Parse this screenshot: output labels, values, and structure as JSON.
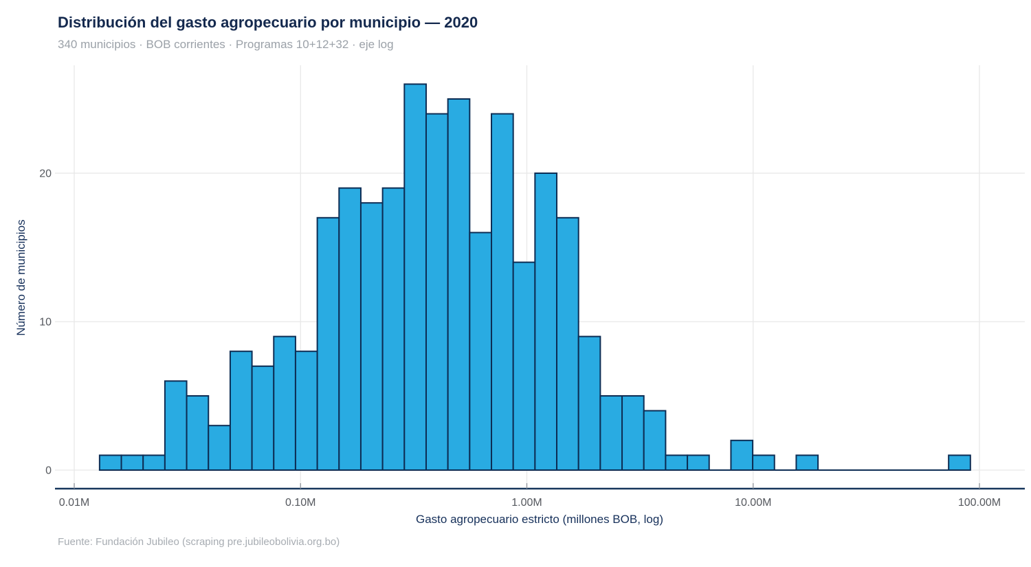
{
  "header": {
    "title": "Distribución del gasto agropecuario por municipio — 2020",
    "subtitle": "340 municipios · BOB corrientes · Programas 10+12+32 · eje log"
  },
  "footer": {
    "source": "Fuente: Fundación Jubileo (scraping pre.jubileobolivia.org.bo)"
  },
  "chart_data": {
    "type": "bar",
    "subtype": "histogram",
    "title": "Distribución del gasto agropecuario por municipio — 2020",
    "subtitle": "340 municipios · BOB corrientes · Programas 10+12+32 · eje log",
    "xlabel": "Gasto agropecuario estricto (millones BOB, log)",
    "ylabel": "Número de municipios",
    "x_scale": "log10",
    "x_ticks": [
      {
        "label": "0.01M",
        "millions": 0.01
      },
      {
        "label": "0.10M",
        "millions": 0.1
      },
      {
        "label": "1.00M",
        "millions": 1
      },
      {
        "label": "10.00M",
        "millions": 10
      },
      {
        "label": "100.00M",
        "millions": 100
      }
    ],
    "y_ticks": [
      0,
      10,
      20
    ],
    "ylim": [
      0,
      27.5
    ],
    "grid": true,
    "bin_log10_start_millions": -1.888,
    "bin_log10_width": 0.0962,
    "counts": [
      1,
      1,
      1,
      6,
      5,
      3,
      8,
      7,
      9,
      8,
      17,
      19,
      18,
      19,
      26,
      24,
      25,
      16,
      24,
      14,
      20,
      17,
      9,
      5,
      5,
      4,
      1,
      1,
      0,
      2,
      1,
      0,
      1,
      0,
      0,
      0,
      0,
      0,
      0,
      1
    ],
    "colors": {
      "bar_fill": "#29abe2",
      "bar_stroke": "#0d2d54",
      "gridline": "#e8e8e8",
      "axis_line": "#16365c",
      "tick_label": "#55585e",
      "axis_title": "#16305a",
      "tick_mark": "#8d9299"
    }
  }
}
